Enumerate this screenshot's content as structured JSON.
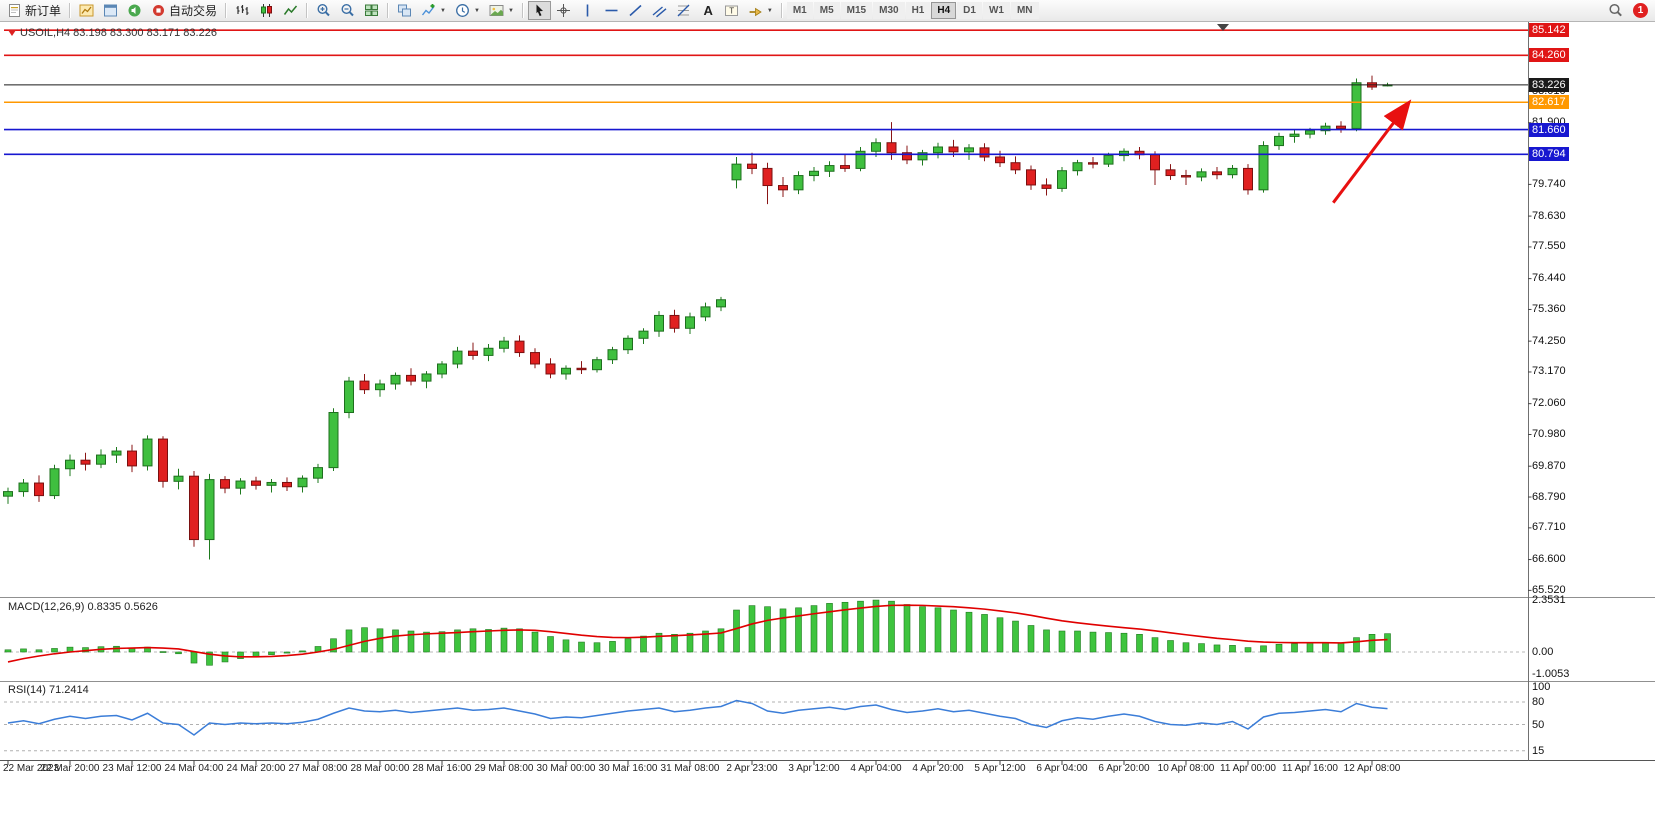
{
  "toolbar": {
    "new_order_label": "新订单",
    "autotrade_label": "自动交易",
    "timeframes": [
      "M1",
      "M5",
      "M15",
      "M30",
      "H1",
      "H4",
      "D1",
      "W1",
      "MN"
    ],
    "active_timeframe": "H4",
    "notification_count": "1"
  },
  "chart": {
    "symbol_info": "USOIL,H4 83.198 83.300 83.171 83.226",
    "price_axis_ticks": [
      {
        "v": 83.01,
        "label": "83.010"
      },
      {
        "v": 81.9,
        "label": "81.900"
      },
      {
        "v": 79.74,
        "label": "79.740"
      },
      {
        "v": 78.63,
        "label": "78.630"
      },
      {
        "v": 77.55,
        "label": "77.550"
      },
      {
        "v": 76.44,
        "label": "76.440"
      },
      {
        "v": 75.36,
        "label": "75.360"
      },
      {
        "v": 74.25,
        "label": "74.250"
      },
      {
        "v": 73.17,
        "label": "73.170"
      },
      {
        "v": 72.06,
        "label": "72.060"
      },
      {
        "v": 70.98,
        "label": "70.980"
      },
      {
        "v": 69.87,
        "label": "69.870"
      },
      {
        "v": 68.79,
        "label": "68.790"
      },
      {
        "v": 67.71,
        "label": "67.710"
      },
      {
        "v": 66.6,
        "label": "66.600"
      },
      {
        "v": 65.52,
        "label": "65.520"
      }
    ]
  },
  "panels": {
    "macd": {
      "label": "MACD(12,26,9) 0.8335 0.5626",
      "scale": [
        {
          "v": 2.3531,
          "label": "2.3531"
        },
        {
          "v": 0,
          "label": "0.00"
        },
        {
          "v": -1.0053,
          "label": "-1.0053"
        }
      ]
    },
    "rsi": {
      "label": "RSI(14) 71.2414",
      "scale": [
        {
          "v": 100,
          "label": "100"
        },
        {
          "v": 80,
          "label": "80"
        },
        {
          "v": 50,
          "label": "50"
        },
        {
          "v": 15,
          "label": "15"
        }
      ],
      "levels": [
        80,
        50,
        15
      ]
    }
  },
  "chart_data": {
    "type": "candlestick",
    "symbol": "USOIL",
    "timeframe": "H4",
    "current_bar": {
      "open": 83.198,
      "high": 83.3,
      "low": 83.171,
      "close": 83.226
    },
    "h_lines": [
      {
        "value": 85.142,
        "label": "85.142",
        "color": "#e01515",
        "kind": "resistance"
      },
      {
        "value": 84.26,
        "label": "84.260",
        "color": "#e01515",
        "kind": "resistance"
      },
      {
        "value": 83.226,
        "label": "83.226",
        "color": "#1a1a1a",
        "kind": "bid"
      },
      {
        "value": 82.617,
        "label": "82.617",
        "color": "#ff9800",
        "kind": "level"
      },
      {
        "value": 81.66,
        "label": "81.660",
        "color": "#1717d0",
        "kind": "support"
      },
      {
        "value": 80.794,
        "label": "80.794",
        "color": "#1717d0",
        "kind": "support"
      }
    ],
    "x_labels": [
      "22 Mar 2023",
      "22 Mar 20:00",
      "23 Mar 12:00",
      "24 Mar 04:00",
      "24 Mar 20:00",
      "27 Mar 08:00",
      "28 Mar 00:00",
      "28 Mar 16:00",
      "29 Mar 08:00",
      "30 Mar 00:00",
      "30 Mar 16:00",
      "31 Mar 08:00",
      "2 Apr 23:00",
      "3 Apr 12:00",
      "4 Apr 04:00",
      "4 Apr 20:00",
      "5 Apr 12:00",
      "6 Apr 04:00",
      "6 Apr 20:00",
      "10 Apr 08:00",
      "11 Apr 00:00",
      "11 Apr 16:00",
      "12 Apr 08:00"
    ],
    "bars_per_label": 4,
    "candles": [
      [
        68.82,
        69.12,
        68.55,
        68.98
      ],
      [
        68.98,
        69.42,
        68.8,
        69.28
      ],
      [
        69.28,
        69.55,
        68.62,
        68.84
      ],
      [
        68.84,
        69.92,
        68.72,
        69.78
      ],
      [
        69.78,
        70.28,
        69.52,
        70.08
      ],
      [
        70.08,
        70.34,
        69.72,
        69.94
      ],
      [
        69.94,
        70.46,
        69.8,
        70.26
      ],
      [
        70.26,
        70.54,
        69.98,
        70.4
      ],
      [
        70.4,
        70.62,
        69.66,
        69.88
      ],
      [
        69.88,
        70.95,
        69.72,
        70.82
      ],
      [
        70.82,
        70.92,
        69.12,
        69.34
      ],
      [
        69.34,
        69.78,
        69.06,
        69.52
      ],
      [
        69.52,
        69.7,
        67.05,
        67.3
      ],
      [
        67.3,
        69.6,
        66.6,
        69.4
      ],
      [
        69.4,
        69.52,
        68.92,
        69.1
      ],
      [
        69.1,
        69.45,
        68.88,
        69.35
      ],
      [
        69.35,
        69.5,
        69.05,
        69.2
      ],
      [
        69.2,
        69.42,
        68.95,
        69.3
      ],
      [
        69.3,
        69.48,
        69.0,
        69.15
      ],
      [
        69.15,
        69.55,
        68.95,
        69.45
      ],
      [
        69.45,
        69.95,
        69.28,
        69.82
      ],
      [
        69.82,
        71.9,
        69.7,
        71.75
      ],
      [
        71.75,
        73.0,
        71.55,
        72.85
      ],
      [
        72.85,
        73.1,
        72.4,
        72.55
      ],
      [
        72.55,
        72.9,
        72.3,
        72.75
      ],
      [
        72.75,
        73.15,
        72.55,
        73.05
      ],
      [
        73.05,
        73.3,
        72.7,
        72.85
      ],
      [
        72.85,
        73.2,
        72.6,
        73.1
      ],
      [
        73.1,
        73.55,
        72.95,
        73.45
      ],
      [
        73.45,
        74.05,
        73.3,
        73.9
      ],
      [
        73.9,
        74.2,
        73.6,
        73.75
      ],
      [
        73.75,
        74.15,
        73.55,
        74.0
      ],
      [
        74.0,
        74.4,
        73.85,
        74.25
      ],
      [
        74.25,
        74.45,
        73.7,
        73.85
      ],
      [
        73.85,
        74.0,
        73.3,
        73.45
      ],
      [
        73.45,
        73.65,
        72.95,
        73.1
      ],
      [
        73.1,
        73.4,
        72.9,
        73.3
      ],
      [
        73.3,
        73.55,
        73.1,
        73.25
      ],
      [
        73.25,
        73.7,
        73.15,
        73.6
      ],
      [
        73.6,
        74.05,
        73.45,
        73.95
      ],
      [
        73.95,
        74.45,
        73.8,
        74.35
      ],
      [
        74.35,
        74.7,
        74.15,
        74.6
      ],
      [
        74.6,
        75.3,
        74.4,
        75.15
      ],
      [
        75.15,
        75.35,
        74.55,
        74.7
      ],
      [
        74.7,
        75.25,
        74.5,
        75.1
      ],
      [
        75.1,
        75.6,
        74.95,
        75.45
      ],
      [
        75.45,
        75.8,
        75.3,
        75.7
      ],
      [
        79.9,
        80.7,
        79.6,
        80.45
      ],
      [
        80.45,
        80.85,
        80.1,
        80.3
      ],
      [
        80.3,
        80.5,
        79.05,
        79.7
      ],
      [
        79.7,
        80.0,
        79.3,
        79.55
      ],
      [
        79.55,
        80.2,
        79.4,
        80.05
      ],
      [
        80.05,
        80.35,
        79.85,
        80.2
      ],
      [
        80.2,
        80.55,
        80.0,
        80.4
      ],
      [
        80.4,
        80.78,
        80.18,
        80.3
      ],
      [
        80.3,
        81.05,
        80.2,
        80.9
      ],
      [
        80.9,
        81.35,
        80.7,
        81.2
      ],
      [
        81.2,
        81.92,
        80.6,
        80.85
      ],
      [
        80.85,
        81.1,
        80.45,
        80.6
      ],
      [
        80.6,
        80.95,
        80.4,
        80.85
      ],
      [
        80.85,
        81.2,
        80.65,
        81.05
      ],
      [
        81.05,
        81.3,
        80.7,
        80.88
      ],
      [
        80.88,
        81.15,
        80.6,
        81.02
      ],
      [
        81.02,
        81.18,
        80.55,
        80.7
      ],
      [
        80.7,
        80.92,
        80.35,
        80.5
      ],
      [
        80.5,
        80.72,
        80.1,
        80.25
      ],
      [
        80.25,
        80.4,
        79.55,
        79.72
      ],
      [
        79.72,
        79.95,
        79.35,
        79.6
      ],
      [
        79.6,
        80.35,
        79.48,
        80.22
      ],
      [
        80.22,
        80.6,
        80.05,
        80.5
      ],
      [
        80.5,
        80.7,
        80.3,
        80.45
      ],
      [
        80.45,
        80.85,
        80.35,
        80.75
      ],
      [
        80.75,
        81.0,
        80.55,
        80.9
      ],
      [
        80.9,
        81.05,
        80.62,
        80.78
      ],
      [
        80.78,
        80.9,
        79.72,
        80.25
      ],
      [
        80.25,
        80.45,
        79.9,
        80.05
      ],
      [
        80.05,
        80.25,
        79.72,
        80.0
      ],
      [
        80.0,
        80.3,
        79.85,
        80.18
      ],
      [
        80.18,
        80.35,
        79.92,
        80.08
      ],
      [
        80.08,
        80.42,
        79.95,
        80.3
      ],
      [
        80.3,
        80.45,
        79.38,
        79.55
      ],
      [
        79.55,
        81.25,
        79.45,
        81.1
      ],
      [
        81.1,
        81.55,
        80.95,
        81.42
      ],
      [
        81.42,
        81.65,
        81.2,
        81.5
      ],
      [
        81.5,
        81.72,
        81.35,
        81.62
      ],
      [
        81.62,
        81.9,
        81.48,
        81.78
      ],
      [
        81.78,
        81.95,
        81.55,
        81.7
      ],
      [
        81.7,
        83.45,
        81.6,
        83.3
      ],
      [
        83.3,
        83.55,
        83.05,
        83.15
      ],
      [
        83.198,
        83.3,
        83.171,
        83.226
      ]
    ],
    "indicators": {
      "macd": {
        "params": [
          12,
          26,
          9
        ],
        "value": 0.8335,
        "signal_value": 0.5626,
        "scale_max": 2.3531,
        "scale_min": -1.0053,
        "histogram": [
          0.1,
          0.14,
          0.1,
          0.16,
          0.22,
          0.2,
          0.24,
          0.26,
          0.18,
          0.22,
          0.02,
          -0.08,
          -0.5,
          -0.6,
          -0.45,
          -0.3,
          -0.2,
          -0.12,
          -0.05,
          0.05,
          0.25,
          0.6,
          1.0,
          1.1,
          1.05,
          1.0,
          0.95,
          0.9,
          0.92,
          1.0,
          1.05,
          1.02,
          1.08,
          1.05,
          0.9,
          0.7,
          0.55,
          0.45,
          0.42,
          0.48,
          0.6,
          0.72,
          0.85,
          0.8,
          0.85,
          0.95,
          1.05,
          1.9,
          2.1,
          2.05,
          1.95,
          2.0,
          2.1,
          2.2,
          2.25,
          2.3,
          2.35,
          2.3,
          2.15,
          2.05,
          2.0,
          1.9,
          1.8,
          1.7,
          1.55,
          1.4,
          1.2,
          1.0,
          0.95,
          0.95,
          0.9,
          0.88,
          0.85,
          0.8,
          0.65,
          0.52,
          0.42,
          0.38,
          0.32,
          0.3,
          0.2,
          0.28,
          0.35,
          0.38,
          0.4,
          0.42,
          0.4,
          0.65,
          0.8,
          0.83
        ],
        "signal": [
          -0.45,
          -0.3,
          -0.18,
          -0.08,
          0.0,
          0.06,
          0.12,
          0.16,
          0.18,
          0.2,
          0.18,
          0.14,
          0.02,
          -0.1,
          -0.18,
          -0.22,
          -0.22,
          -0.2,
          -0.16,
          -0.1,
          0.0,
          0.12,
          0.3,
          0.48,
          0.62,
          0.72,
          0.78,
          0.82,
          0.85,
          0.88,
          0.92,
          0.95,
          0.98,
          1.0,
          0.98,
          0.92,
          0.84,
          0.76,
          0.7,
          0.66,
          0.65,
          0.67,
          0.71,
          0.74,
          0.77,
          0.81,
          0.86,
          1.06,
          1.27,
          1.43,
          1.54,
          1.63,
          1.73,
          1.82,
          1.91,
          1.99,
          2.06,
          2.11,
          2.12,
          2.11,
          2.08,
          2.05,
          2.0,
          1.94,
          1.86,
          1.77,
          1.66,
          1.53,
          1.41,
          1.32,
          1.24,
          1.17,
          1.1,
          1.04,
          0.96,
          0.87,
          0.78,
          0.7,
          0.62,
          0.56,
          0.49,
          0.45,
          0.43,
          0.42,
          0.42,
          0.42,
          0.41,
          0.46,
          0.53,
          0.5626
        ]
      },
      "rsi": {
        "period": 14,
        "value": 71.2414,
        "values": [
          52,
          55,
          51,
          57,
          61,
          58,
          61,
          62,
          56,
          65,
          52,
          50,
          36,
          52,
          50,
          52,
          51,
          52,
          51,
          53,
          57,
          65,
          72,
          68,
          67,
          69,
          66,
          68,
          70,
          72,
          69,
          70,
          72,
          68,
          64,
          58,
          60,
          59,
          62,
          65,
          68,
          70,
          72,
          67,
          69,
          72,
          74,
          82,
          78,
          68,
          65,
          69,
          71,
          73,
          70,
          74,
          76,
          70,
          66,
          68,
          71,
          67,
          69,
          65,
          61,
          58,
          50,
          46,
          55,
          59,
          57,
          61,
          64,
          61,
          54,
          50,
          49,
          52,
          50,
          54,
          44,
          60,
          65,
          66,
          68,
          70,
          67,
          78,
          73,
          71.24
        ]
      }
    },
    "annotations": [
      {
        "type": "arrow",
        "color": "#e81010",
        "from_bar": 85.5,
        "from_price": 79.1,
        "to_bar": 90.3,
        "to_price": 82.55
      }
    ]
  }
}
